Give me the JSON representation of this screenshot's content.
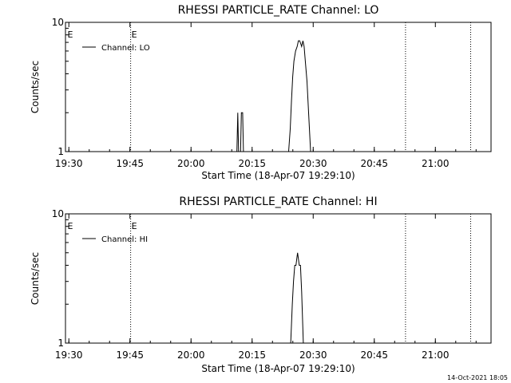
{
  "footer": {
    "timestamp": "14-Oct-2021 18:05"
  },
  "chart_data": [
    {
      "type": "line",
      "title": "RHESSI PARTICLE_RATE Channel: LO",
      "xlabel": "Start Time (18-Apr-07 19:29:10)",
      "ylabel": "Counts/sec",
      "yscale": "log",
      "ylim": [
        1,
        10
      ],
      "xlim_minutes": [
        0.0,
        104.5
      ],
      "x_ticks": [
        {
          "label": "19:30",
          "t": 0.83
        },
        {
          "label": "19:45",
          "t": 15.83
        },
        {
          "label": "20:00",
          "t": 30.83
        },
        {
          "label": "20:15",
          "t": 45.83
        },
        {
          "label": "20:30",
          "t": 60.83
        },
        {
          "label": "20:45",
          "t": 75.83
        },
        {
          "label": "21:00",
          "t": 90.83
        }
      ],
      "y_ticks": [
        {
          "label": "1",
          "v": 1
        },
        {
          "label": "10",
          "v": 10
        }
      ],
      "vlines": [
        {
          "t": 16.0,
          "label": "E"
        },
        {
          "t": 83.5,
          "label": ""
        },
        {
          "t": 99.5,
          "label": ""
        }
      ],
      "edge_labels": [
        {
          "t": 0.5,
          "label": "E"
        }
      ],
      "legend": {
        "entry": "Channel: LO",
        "position": "top-left"
      },
      "series": [
        {
          "name": "Channel: LO",
          "points": [
            [
              42.1,
              1
            ],
            [
              42.3,
              2.0
            ],
            [
              42.5,
              1
            ],
            [
              43.0,
              1
            ],
            [
              43.2,
              2.0
            ],
            [
              43.5,
              2.0
            ],
            [
              43.7,
              1
            ],
            [
              54.8,
              1
            ],
            [
              55.2,
              1.5
            ],
            [
              55.5,
              2.5
            ],
            [
              55.8,
              3.8
            ],
            [
              56.1,
              5.0
            ],
            [
              56.5,
              6.0
            ],
            [
              56.9,
              6.5
            ],
            [
              57.2,
              7.2
            ],
            [
              57.5,
              7.2
            ],
            [
              57.8,
              6.8
            ],
            [
              58.0,
              6.5
            ],
            [
              58.3,
              7.2
            ],
            [
              58.6,
              6.5
            ],
            [
              58.9,
              5.0
            ],
            [
              59.3,
              3.5
            ],
            [
              59.7,
              2.0
            ],
            [
              60.2,
              1
            ]
          ]
        }
      ]
    },
    {
      "type": "line",
      "title": "RHESSI PARTICLE_RATE Channel: HI",
      "xlabel": "Start Time (18-Apr-07 19:29:10)",
      "ylabel": "Counts/sec",
      "yscale": "log",
      "ylim": [
        1,
        10
      ],
      "xlim_minutes": [
        0.0,
        104.5
      ],
      "x_ticks": [
        {
          "label": "19:30",
          "t": 0.83
        },
        {
          "label": "19:45",
          "t": 15.83
        },
        {
          "label": "20:00",
          "t": 30.83
        },
        {
          "label": "20:15",
          "t": 45.83
        },
        {
          "label": "20:30",
          "t": 60.83
        },
        {
          "label": "20:45",
          "t": 75.83
        },
        {
          "label": "21:00",
          "t": 90.83
        }
      ],
      "y_ticks": [
        {
          "label": "1",
          "v": 1
        },
        {
          "label": "10",
          "v": 10
        }
      ],
      "vlines": [
        {
          "t": 16.0,
          "label": "E"
        },
        {
          "t": 83.5,
          "label": ""
        },
        {
          "t": 99.5,
          "label": ""
        }
      ],
      "edge_labels": [
        {
          "t": 0.5,
          "label": "E"
        }
      ],
      "legend": {
        "entry": "Channel: HI",
        "position": "top-left"
      },
      "series": [
        {
          "name": "Channel: HI",
          "points": [
            [
              55.3,
              1
            ],
            [
              55.7,
              2.0
            ],
            [
              56.0,
              3.0
            ],
            [
              56.3,
              4.0
            ],
            [
              56.6,
              4.0
            ],
            [
              56.8,
              4.5
            ],
            [
              57.0,
              5.0
            ],
            [
              57.2,
              4.5
            ],
            [
              57.4,
              4.0
            ],
            [
              57.7,
              4.0
            ],
            [
              58.0,
              2.5
            ],
            [
              58.4,
              1
            ]
          ]
        }
      ]
    }
  ]
}
